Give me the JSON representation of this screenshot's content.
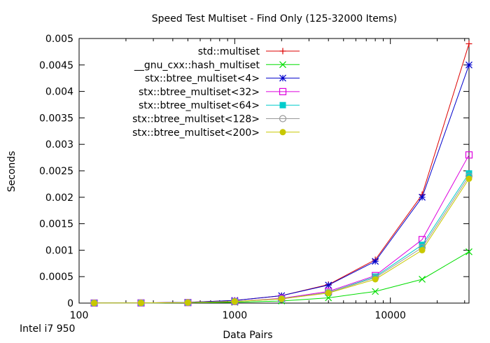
{
  "chart_data": {
    "type": "line",
    "title": "Speed Test Multiset - Find Only (125-32000 Items)",
    "xlabel": "Data Pairs",
    "ylabel": "Seconds",
    "footnote": "Intel i7 950",
    "x_scale": "log",
    "xlim": [
      100,
      32000
    ],
    "ylim": [
      0,
      0.005
    ],
    "x_ticks": [
      {
        "value": 100,
        "label": "100"
      },
      {
        "value": 1000,
        "label": "1000"
      },
      {
        "value": 10000,
        "label": "10000"
      }
    ],
    "y_ticks": [
      {
        "value": 0,
        "label": "0"
      },
      {
        "value": 0.0005,
        "label": "0.0005"
      },
      {
        "value": 0.001,
        "label": "0.001"
      },
      {
        "value": 0.0015,
        "label": "0.0015"
      },
      {
        "value": 0.002,
        "label": "0.002"
      },
      {
        "value": 0.0025,
        "label": "0.0025"
      },
      {
        "value": 0.003,
        "label": "0.003"
      },
      {
        "value": 0.0035,
        "label": "0.0035"
      },
      {
        "value": 0.004,
        "label": "0.004"
      },
      {
        "value": 0.0045,
        "label": "0.0045"
      },
      {
        "value": 0.005,
        "label": "0.005"
      }
    ],
    "grid": false,
    "legend_position": "top-left",
    "x": [
      125,
      250,
      500,
      1000,
      2000,
      4000,
      8000,
      16000,
      32000
    ],
    "series": [
      {
        "name": "std::multiset",
        "color": "#dd0000",
        "marker": "plus",
        "values": [
          1e-06,
          4e-06,
          1.5e-05,
          5e-05,
          0.00014,
          0.00035,
          0.00082,
          0.00205,
          0.0049
        ]
      },
      {
        "name": "__gnu_cxx::hash_multiset",
        "color": "#00dd00",
        "marker": "cross",
        "values": [
          1e-06,
          2e-06,
          6e-06,
          1.5e-05,
          4e-05,
          0.0001,
          0.00022,
          0.00045,
          0.00097
        ]
      },
      {
        "name": "stx::btree_multiset<4>",
        "color": "#0000cc",
        "marker": "star",
        "values": [
          1e-06,
          4e-06,
          1.5e-05,
          5e-05,
          0.00014,
          0.00034,
          0.00079,
          0.002,
          0.0045
        ]
      },
      {
        "name": "stx::btree_multiset<32>",
        "color": "#dd00dd",
        "marker": "square-open",
        "values": [
          1e-06,
          3e-06,
          1e-05,
          3e-05,
          9e-05,
          0.00022,
          0.00052,
          0.0012,
          0.0028
        ]
      },
      {
        "name": "stx::btree_multiset<64>",
        "color": "#00cccc",
        "marker": "square-filled",
        "values": [
          1e-06,
          3e-06,
          1e-05,
          3e-05,
          8e-05,
          0.0002,
          0.0005,
          0.0011,
          0.00245
        ]
      },
      {
        "name": "stx::btree_multiset<128>",
        "color": "#999999",
        "marker": "circle-open",
        "values": [
          1e-06,
          3e-06,
          1e-05,
          3e-05,
          8e-05,
          0.0002,
          0.00048,
          0.00105,
          0.0024
        ]
      },
      {
        "name": "stx::btree_multiset<200>",
        "color": "#c8c800",
        "marker": "circle-filled",
        "values": [
          1e-06,
          3e-06,
          1e-05,
          3e-05,
          8e-05,
          0.00019,
          0.00045,
          0.001,
          0.00235
        ]
      }
    ]
  }
}
